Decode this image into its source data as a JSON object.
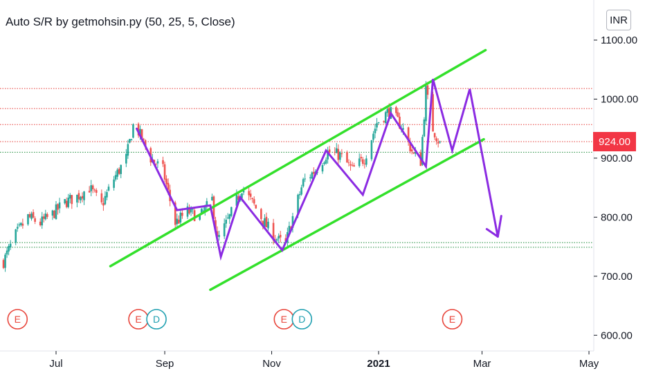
{
  "header": {
    "indicator_title": "Auto S/R by getmohsin.py (50, 25, 5, Close)",
    "currency": "INR"
  },
  "price_badge": "924.00",
  "colors": {
    "up": "#26a69a",
    "down": "#ef5350",
    "resistance": "#e53935",
    "support": "#1b8a3a",
    "channel": "#33e02b",
    "projection": "#8b2be2",
    "badge": "#f23645"
  },
  "chart_data": {
    "type": "candlestick",
    "title": "Auto S/R by getmohsin.py (50, 25, 5, Close)",
    "y_axis": {
      "ticks": [
        "1100.00",
        "1000.00",
        "900.00",
        "800.00",
        "700.00",
        "600.00"
      ],
      "range": [
        580,
        1170
      ]
    },
    "x_axis": {
      "ticks": [
        "Jul",
        "Sep",
        "Nov",
        "2021",
        "Mar",
        "May"
      ]
    },
    "last_price": 924,
    "resistance_levels": [
      1018,
      984,
      957,
      928
    ],
    "support_levels": [
      910,
      757,
      749
    ],
    "price_path": [
      [
        "2020-06-01",
        725
      ],
      [
        "2020-06-08",
        770
      ],
      [
        "2020-06-15",
        800
      ],
      [
        "2020-06-22",
        790
      ],
      [
        "2020-06-29",
        805
      ],
      [
        "2020-07-06",
        825
      ],
      [
        "2020-07-13",
        835
      ],
      [
        "2020-07-20",
        850
      ],
      [
        "2020-07-27",
        820
      ],
      [
        "2020-08-03",
        865
      ],
      [
        "2020-08-10",
        900
      ],
      [
        "2020-08-14",
        955
      ],
      [
        "2020-08-17",
        945
      ],
      [
        "2020-08-24",
        900
      ],
      [
        "2020-08-31",
        880
      ],
      [
        "2020-09-07",
        790
      ],
      [
        "2020-09-14",
        810
      ],
      [
        "2020-09-21",
        800
      ],
      [
        "2020-09-28",
        830
      ],
      [
        "2020-10-01",
        760
      ],
      [
        "2020-10-08",
        800
      ],
      [
        "2020-10-15",
        850
      ],
      [
        "2020-10-22",
        820
      ],
      [
        "2020-10-29",
        785
      ],
      [
        "2020-11-05",
        760
      ],
      [
        "2020-11-09",
        755
      ],
      [
        "2020-11-12",
        790
      ],
      [
        "2020-11-19",
        860
      ],
      [
        "2020-11-26",
        880
      ],
      [
        "2020-12-03",
        910
      ],
      [
        "2020-12-10",
        905
      ],
      [
        "2020-12-17",
        880
      ],
      [
        "2020-12-24",
        900
      ],
      [
        "2020-12-31",
        960
      ],
      [
        "2021-01-07",
        980
      ],
      [
        "2021-01-14",
        955
      ],
      [
        "2021-01-21",
        905
      ],
      [
        "2021-01-25",
        895
      ],
      [
        "2021-01-28",
        1015
      ],
      [
        "2021-02-01",
        950
      ],
      [
        "2021-02-05",
        924
      ]
    ],
    "channel_upper": [
      [
        "2020-08-01",
        717
      ],
      [
        "2021-03-03",
        1083
      ]
    ],
    "channel_lower": [
      [
        "2020-09-27",
        677
      ],
      [
        "2021-03-02",
        932
      ]
    ],
    "projection_path": [
      [
        "2020-08-16",
        950
      ],
      [
        "2020-09-08",
        812
      ],
      [
        "2020-09-27",
        820
      ],
      [
        "2020-10-03",
        733
      ],
      [
        "2020-10-14",
        834
      ],
      [
        "2020-11-07",
        744
      ],
      [
        "2020-12-02",
        913
      ],
      [
        "2020-12-23",
        838
      ],
      [
        "2021-01-08",
        976
      ],
      [
        "2021-01-28",
        886
      ],
      [
        "2021-02-01",
        1034
      ],
      [
        "2021-02-12",
        913
      ],
      [
        "2021-02-22",
        1017
      ],
      [
        "2021-03-10",
        767
      ]
    ],
    "events": [
      {
        "date": "2020-06-09",
        "labels": [
          "E"
        ]
      },
      {
        "date": "2020-08-17",
        "labels": [
          "E",
          "D"
        ]
      },
      {
        "date": "2020-11-08",
        "labels": [
          "E",
          "D"
        ]
      },
      {
        "date": "2021-02-12",
        "labels": [
          "E"
        ]
      }
    ]
  }
}
